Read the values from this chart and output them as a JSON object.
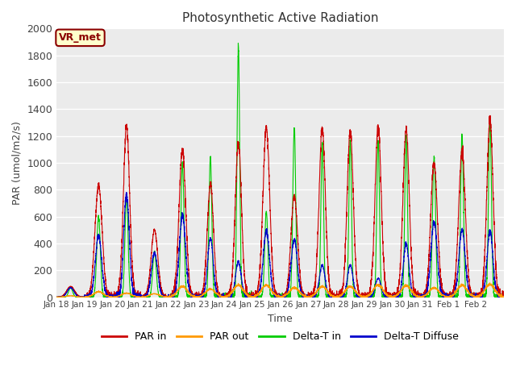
{
  "title": "Photosynthetic Active Radiation",
  "ylabel": "PAR (umol/m2/s)",
  "xlabel": "Time",
  "ylim": [
    0,
    2000
  ],
  "yticks": [
    0,
    200,
    400,
    600,
    800,
    1000,
    1200,
    1400,
    1600,
    1800,
    2000
  ],
  "background_color": "#ebebeb",
  "annotation_text": "VR_met",
  "annotation_bg": "#ffffcc",
  "annotation_border": "#8B0000",
  "legend_labels": [
    "PAR in",
    "PAR out",
    "Delta-T in",
    "Delta-T Diffuse"
  ],
  "legend_colors": [
    "#cc0000",
    "#ff9900",
    "#00cc00",
    "#0000cc"
  ],
  "tick_labels": [
    "Jan 18",
    "Jan 19",
    "Jan 20",
    "Jan 21",
    "Jan 22",
    "Jan 23",
    "Jan 24",
    "Jan 25",
    "Jan 26",
    "Jan 27",
    "Jan 28",
    "Jan 29",
    "Jan 30",
    "Jan 31",
    "Feb 1",
    "Feb 2"
  ],
  "n_days": 16,
  "pts_per_day": 288,
  "peaks_par_in": [
    80,
    830,
    1270,
    500,
    1100,
    840,
    1150,
    1260,
    750,
    1260,
    1240,
    1260,
    1250,
    1000,
    1090,
    1320
  ],
  "peaks_par_out": [
    10,
    40,
    30,
    25,
    80,
    60,
    90,
    90,
    70,
    80,
    80,
    90,
    85,
    70,
    90,
    95
  ],
  "peaks_delta_t": [
    70,
    600,
    760,
    340,
    1000,
    1040,
    1860,
    640,
    1260,
    1150,
    1160,
    1170,
    1200,
    1040,
    1200,
    1320
  ],
  "peaks_delta_diff": [
    70,
    460,
    760,
    330,
    610,
    440,
    265,
    490,
    430,
    240,
    240,
    140,
    400,
    560,
    500,
    490
  ],
  "width_par_in": [
    0.35,
    0.32,
    0.28,
    0.3,
    0.3,
    0.28,
    0.28,
    0.3,
    0.3,
    0.28,
    0.28,
    0.28,
    0.28,
    0.3,
    0.3,
    0.28
  ],
  "width_delta_t": [
    0.18,
    0.16,
    0.14,
    0.16,
    0.14,
    0.13,
    0.12,
    0.14,
    0.13,
    0.12,
    0.12,
    0.12,
    0.12,
    0.14,
    0.13,
    0.13
  ],
  "width_delta_diff": [
    0.3,
    0.28,
    0.25,
    0.28,
    0.28,
    0.25,
    0.25,
    0.28,
    0.28,
    0.25,
    0.25,
    0.25,
    0.25,
    0.28,
    0.28,
    0.26
  ]
}
